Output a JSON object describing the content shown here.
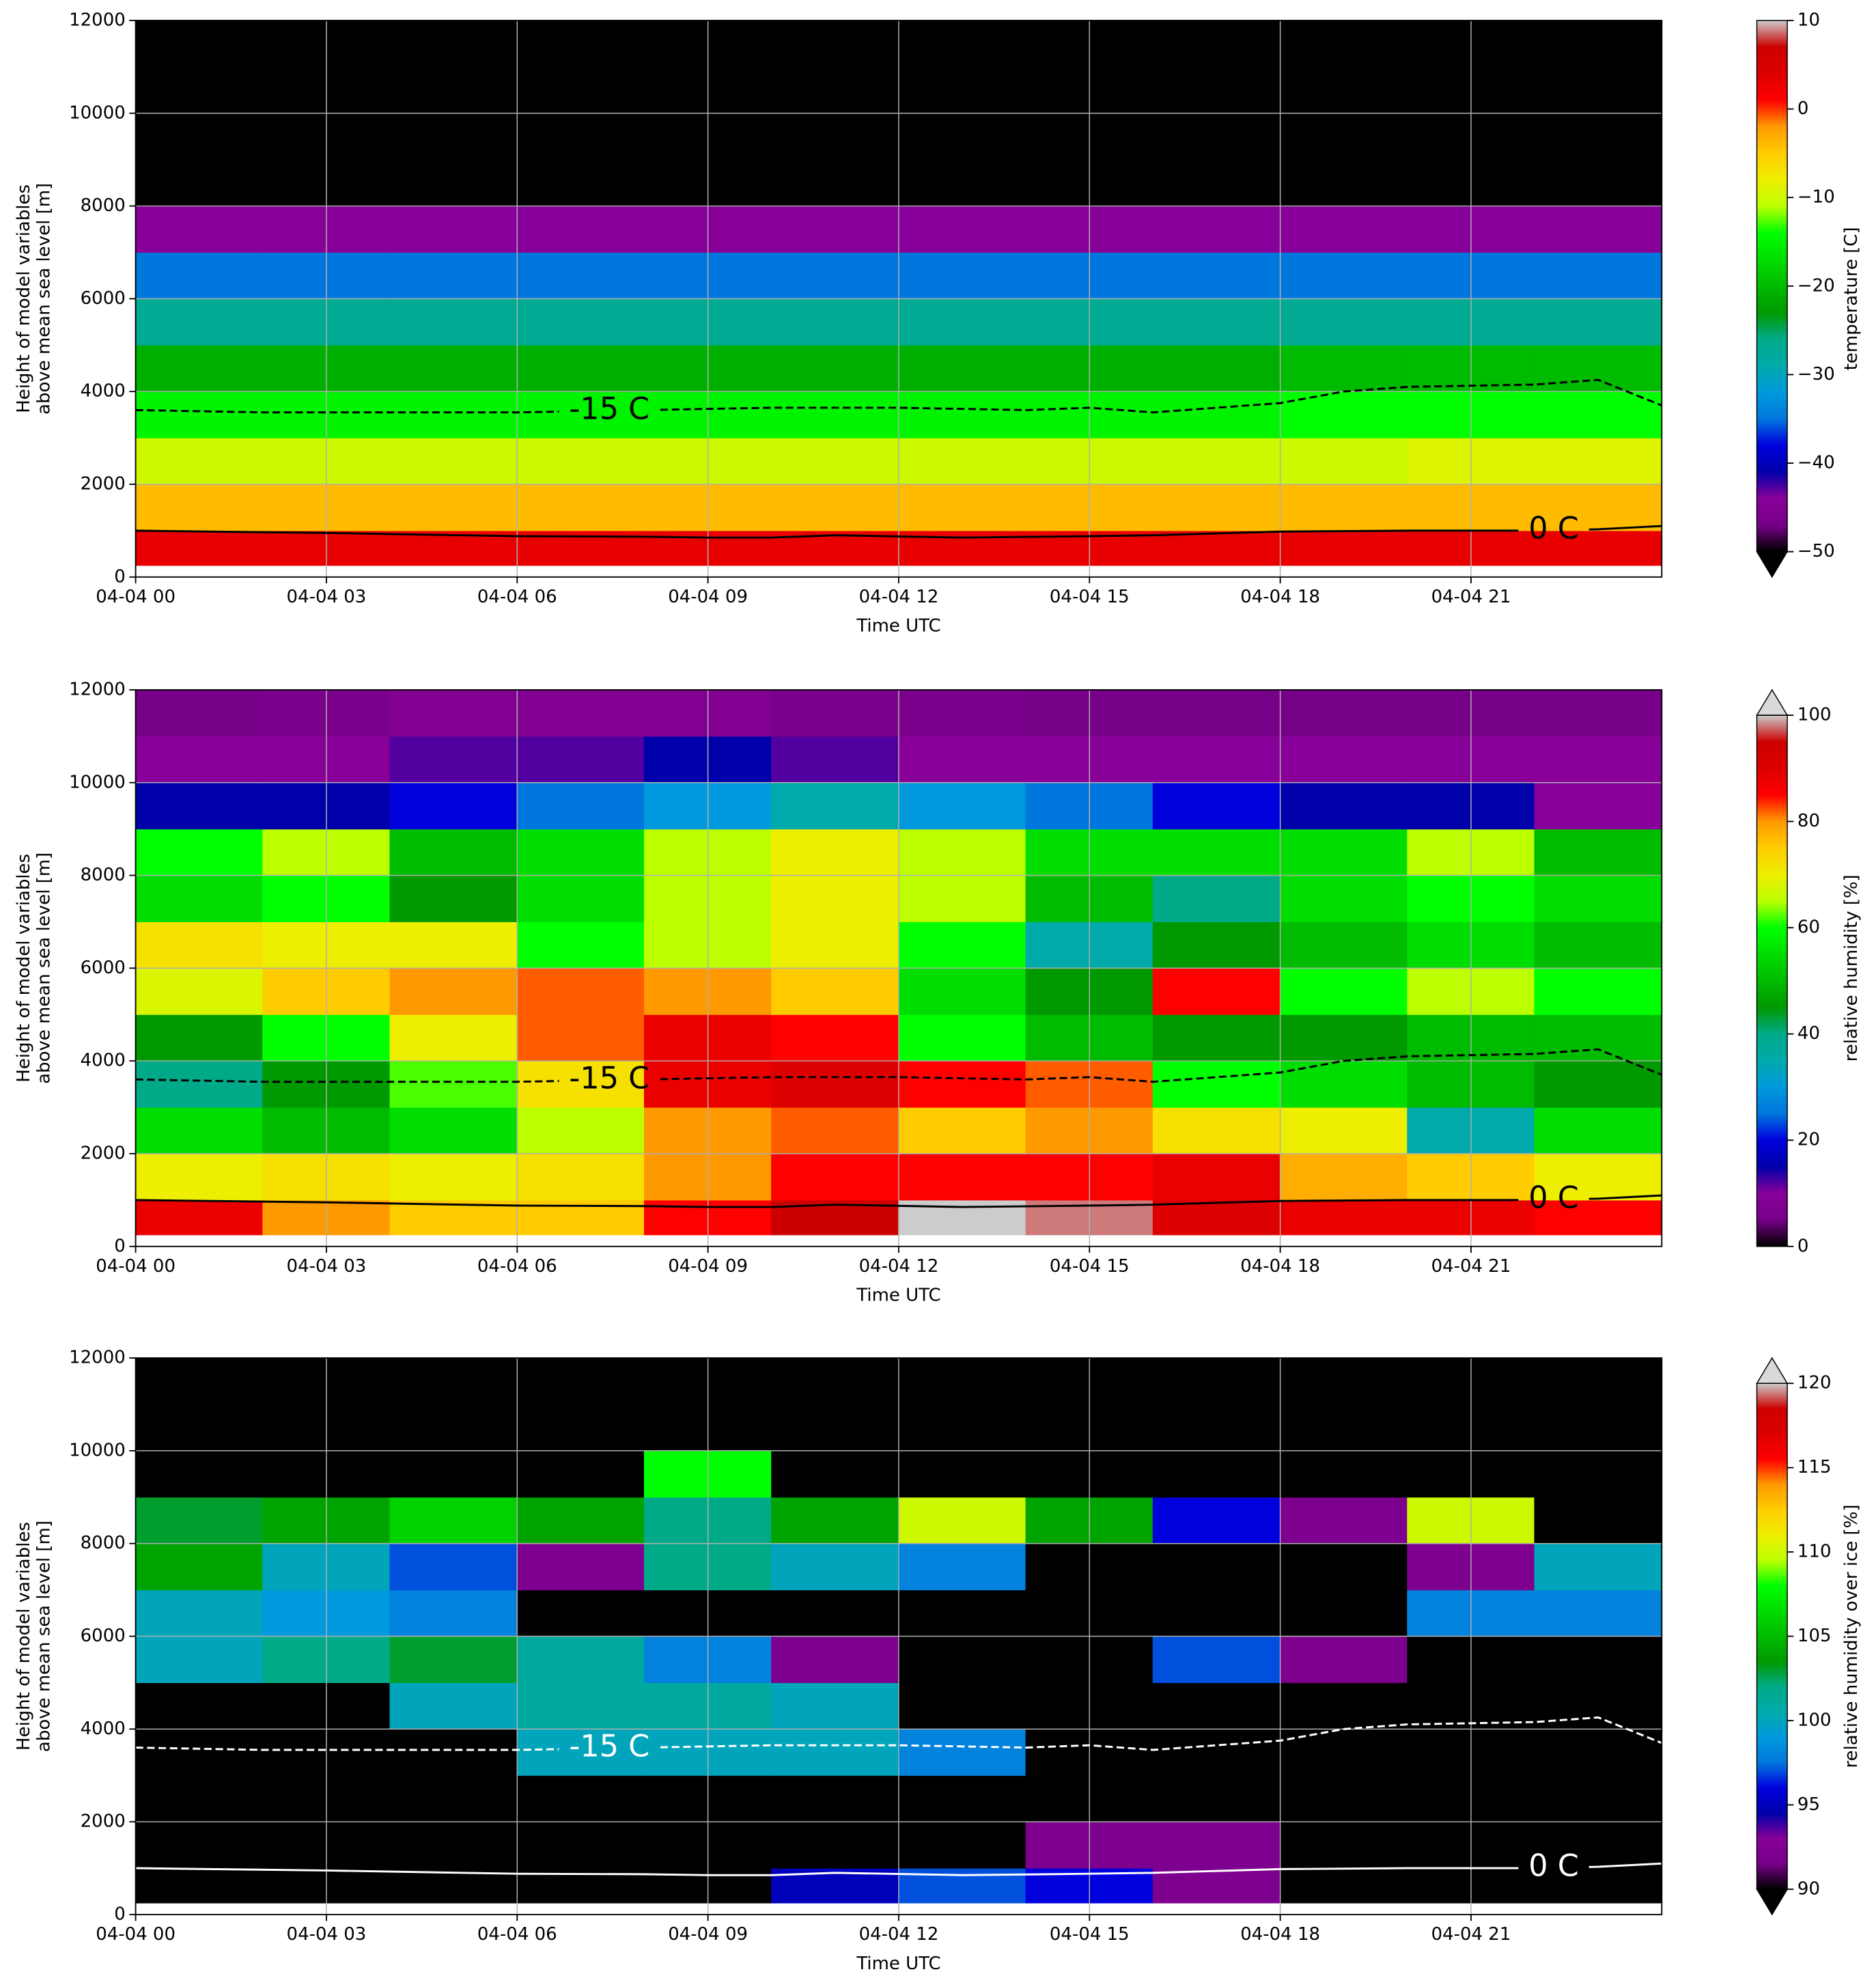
{
  "chart_data": [
    {
      "type": "heatmap",
      "xlabel": "Time UTC",
      "ylabel": [
        "Height of model variables",
        "above mean sea level [m]"
      ],
      "xlim": [
        0,
        24
      ],
      "ylim": [
        0,
        12000
      ],
      "xticks": [
        {
          "value": 0,
          "label": "04-04 00"
        },
        {
          "value": 3,
          "label": "04-04 03"
        },
        {
          "value": 6,
          "label": "04-04 06"
        },
        {
          "value": 9,
          "label": "04-04 09"
        },
        {
          "value": 12,
          "label": "04-04 12"
        },
        {
          "value": 15,
          "label": "04-04 15"
        },
        {
          "value": 18,
          "label": "04-04 18"
        },
        {
          "value": 21,
          "label": "04-04 21"
        }
      ],
      "yticks": [
        0,
        2000,
        4000,
        6000,
        8000,
        10000,
        12000
      ],
      "grid": true,
      "x_edges": [
        0,
        2,
        4,
        6,
        8,
        10,
        12,
        14,
        16,
        18,
        20,
        22,
        24
      ],
      "y_edges": [
        250,
        1000,
        2000,
        3000,
        4000,
        5000,
        6000,
        7000,
        8000,
        9000,
        10000,
        11000,
        12000
      ],
      "z": [
        [
          3,
          3,
          3,
          3,
          3,
          3,
          3,
          3,
          3,
          3,
          3,
          3
        ],
        [
          -4,
          -4,
          -4,
          -4,
          -4,
          -4,
          -4,
          -4,
          -4,
          -4,
          -4,
          -4
        ],
        [
          -10,
          -10,
          -10,
          -10,
          -10,
          -10,
          -10,
          -10,
          -10,
          -10,
          -9,
          -9
        ],
        [
          -15,
          -15,
          -15,
          -15,
          -15,
          -15,
          -15,
          -15,
          -15,
          -14,
          -14,
          -14
        ],
        [
          -21,
          -21,
          -21,
          -21,
          -21,
          -21,
          -21,
          -21,
          -21,
          -20,
          -20,
          -20
        ],
        [
          -27,
          -27,
          -27,
          -27,
          -27,
          -27,
          -27,
          -27,
          -27,
          -27,
          -27,
          -27
        ],
        [
          -35,
          -35,
          -35,
          -35,
          -35,
          -35,
          -35,
          -35,
          -35,
          -35,
          -35,
          -35
        ],
        [
          -44,
          -44,
          -44,
          -44,
          -44,
          -44,
          -44,
          -44,
          -44,
          -44,
          -44,
          -44
        ],
        [
          -52,
          -52,
          -52,
          -52,
          -52,
          -52,
          -52,
          -52,
          -52,
          -52,
          -52,
          -52
        ],
        [
          -60,
          -60,
          -60,
          -60,
          -60,
          -60,
          -60,
          -60,
          -60,
          -60,
          -60,
          -60
        ],
        [
          -60,
          -60,
          -60,
          -60,
          -60,
          -60,
          -60,
          -60,
          -60,
          -60,
          -60,
          -60
        ],
        [
          -60,
          -60,
          -60,
          -60,
          -60,
          -60,
          -60,
          -60,
          -60,
          -60,
          -60,
          -60
        ]
      ],
      "colorbar": {
        "label": "temperature [C]",
        "clim": [
          -50,
          10
        ],
        "extend": "min",
        "under": "#000000",
        "ticks": [
          {
            "value": -50,
            "label": "−50"
          },
          {
            "value": -40,
            "label": "−40"
          },
          {
            "value": -30,
            "label": "−30"
          },
          {
            "value": -20,
            "label": "−20"
          },
          {
            "value": -10,
            "label": "−10"
          },
          0,
          10
        ],
        "colormap": [
          "#000000",
          "#770088",
          "#880099",
          "#0000aa",
          "#0000dd",
          "#0077dd",
          "#0099dd",
          "#00aaaa",
          "#00aa88",
          "#009900",
          "#00bb00",
          "#00dd00",
          "#00ff00",
          "#bbff00",
          "#eeee00",
          "#ffcc00",
          "#ff9900",
          "#ff0000",
          "#dd0000",
          "#cc0000",
          "#cccccc"
        ]
      },
      "contours": [
        {
          "label": "-15 C",
          "style": "dashed",
          "color": "#000000",
          "x": [
            0,
            2,
            4,
            6,
            8,
            10,
            12,
            14,
            15,
            16,
            18,
            19,
            20,
            22,
            23,
            24
          ],
          "y": [
            3600,
            3550,
            3550,
            3550,
            3600,
            3650,
            3650,
            3600,
            3650,
            3550,
            3750,
            4000,
            4100,
            4150,
            4250,
            3700
          ]
        },
        {
          "label": "0 C",
          "style": "solid",
          "color": "#000000",
          "x": [
            0,
            3,
            6,
            8,
            9,
            10,
            11,
            13,
            15,
            16,
            18,
            20,
            22,
            23,
            24
          ],
          "y": [
            1000,
            950,
            880,
            870,
            850,
            850,
            900,
            850,
            880,
            900,
            980,
            1000,
            1000,
            1030,
            1100
          ]
        }
      ]
    },
    {
      "type": "heatmap",
      "xlabel": "Time UTC",
      "ylabel": [
        "Height of model variables",
        "above mean sea level [m]"
      ],
      "xlim": [
        0,
        24
      ],
      "ylim": [
        0,
        12000
      ],
      "xticks": [
        {
          "value": 0,
          "label": "04-04 00"
        },
        {
          "value": 3,
          "label": "04-04 03"
        },
        {
          "value": 6,
          "label": "04-04 06"
        },
        {
          "value": 9,
          "label": "04-04 09"
        },
        {
          "value": 12,
          "label": "04-04 12"
        },
        {
          "value": 15,
          "label": "04-04 15"
        },
        {
          "value": 18,
          "label": "04-04 18"
        },
        {
          "value": 21,
          "label": "04-04 21"
        }
      ],
      "yticks": [
        0,
        2000,
        4000,
        6000,
        8000,
        10000,
        12000
      ],
      "grid": true,
      "x_edges": [
        0,
        2,
        4,
        6,
        8,
        10,
        12,
        14,
        16,
        18,
        20,
        22,
        24
      ],
      "y_edges": [
        250,
        1000,
        2000,
        3000,
        4000,
        5000,
        6000,
        7000,
        8000,
        9000,
        10000,
        11000,
        12000
      ],
      "z": [
        [
          88,
          80,
          75,
          75,
          85,
          95,
          100,
          98,
          90,
          88,
          88,
          85
        ],
        [
          70,
          72,
          70,
          72,
          80,
          85,
          85,
          85,
          88,
          78,
          75,
          70
        ],
        [
          55,
          50,
          55,
          65,
          80,
          82,
          75,
          80,
          72,
          70,
          35,
          55
        ],
        [
          40,
          45,
          62,
          72,
          88,
          90,
          85,
          82,
          60,
          55,
          50,
          45
        ],
        [
          45,
          60,
          70,
          82,
          88,
          85,
          60,
          50,
          45,
          45,
          50,
          50
        ],
        [
          68,
          75,
          80,
          82,
          80,
          75,
          55,
          45,
          85,
          60,
          65,
          60
        ],
        [
          72,
          70,
          70,
          60,
          65,
          70,
          60,
          35,
          45,
          50,
          55,
          50
        ],
        [
          55,
          60,
          45,
          55,
          65,
          70,
          65,
          50,
          40,
          55,
          60,
          55
        ],
        [
          60,
          65,
          50,
          55,
          65,
          70,
          65,
          55,
          55,
          55,
          65,
          50
        ],
        [
          15,
          15,
          20,
          25,
          30,
          35,
          30,
          25,
          20,
          15,
          15,
          10
        ],
        [
          10,
          10,
          12,
          12,
          15,
          12,
          10,
          10,
          10,
          10,
          10,
          10
        ],
        [
          5,
          6,
          8,
          8,
          8,
          6,
          6,
          5,
          5,
          5,
          5,
          5
        ]
      ],
      "colorbar": {
        "label": "relative humidity [%]",
        "clim": [
          0,
          100
        ],
        "extend": "max",
        "over": "#d9d9d9",
        "ticks": [
          0,
          20,
          40,
          60,
          80,
          100
        ],
        "colormap": [
          "#000000",
          "#770088",
          "#880099",
          "#0000aa",
          "#0000dd",
          "#0077dd",
          "#0099dd",
          "#00aaaa",
          "#00aa88",
          "#009900",
          "#00bb00",
          "#00dd00",
          "#00ff00",
          "#bbff00",
          "#eeee00",
          "#ffcc00",
          "#ff9900",
          "#ff0000",
          "#dd0000",
          "#cc0000",
          "#cccccc"
        ]
      },
      "contours": [
        {
          "label": "-15 C",
          "style": "dashed",
          "color": "#000000",
          "x": [
            0,
            2,
            4,
            6,
            8,
            10,
            12,
            14,
            15,
            16,
            18,
            19,
            20,
            22,
            23,
            24
          ],
          "y": [
            3600,
            3550,
            3550,
            3550,
            3600,
            3650,
            3650,
            3600,
            3650,
            3550,
            3750,
            4000,
            4100,
            4150,
            4250,
            3700
          ]
        },
        {
          "label": "0 C",
          "style": "solid",
          "color": "#000000",
          "x": [
            0,
            3,
            6,
            8,
            9,
            10,
            11,
            13,
            15,
            16,
            18,
            20,
            22,
            23,
            24
          ],
          "y": [
            1000,
            950,
            880,
            870,
            850,
            850,
            900,
            850,
            880,
            900,
            980,
            1000,
            1000,
            1030,
            1100
          ]
        }
      ]
    },
    {
      "type": "heatmap",
      "xlabel": "Time UTC",
      "ylabel": [
        "Height of model variables",
        "above mean sea level [m]"
      ],
      "xlim": [
        0,
        24
      ],
      "ylim": [
        0,
        12000
      ],
      "xticks": [
        {
          "value": 0,
          "label": "04-04 00"
        },
        {
          "value": 3,
          "label": "04-04 03"
        },
        {
          "value": 6,
          "label": "04-04 06"
        },
        {
          "value": 9,
          "label": "04-04 09"
        },
        {
          "value": 12,
          "label": "04-04 12"
        },
        {
          "value": 15,
          "label": "04-04 15"
        },
        {
          "value": 18,
          "label": "04-04 18"
        },
        {
          "value": 21,
          "label": "04-04 21"
        }
      ],
      "yticks": [
        0,
        2000,
        4000,
        6000,
        8000,
        10000,
        12000
      ],
      "grid": true,
      "x_edges": [
        0,
        2,
        4,
        6,
        8,
        10,
        12,
        14,
        16,
        18,
        20,
        22,
        24
      ],
      "y_edges": [
        250,
        1000,
        2000,
        3000,
        4000,
        5000,
        6000,
        7000,
        8000,
        9000,
        10000,
        11000,
        12000
      ],
      "z": [
        [
          85,
          85,
          85,
          85,
          85,
          95,
          97,
          96,
          92,
          85,
          85,
          85
        ],
        [
          85,
          85,
          85,
          85,
          85,
          85,
          85,
          92,
          92,
          85,
          85,
          85
        ],
        [
          85,
          85,
          85,
          85,
          85,
          85,
          85,
          85,
          85,
          85,
          85,
          85
        ],
        [
          85,
          85,
          85,
          100,
          100,
          100,
          98,
          85,
          85,
          85,
          85,
          85
        ],
        [
          85,
          85,
          100,
          101,
          101,
          100,
          85,
          85,
          85,
          85,
          85,
          85
        ],
        [
          100,
          102,
          103,
          101,
          98,
          92,
          85,
          85,
          97,
          92,
          85,
          85
        ],
        [
          100,
          99,
          98,
          85,
          85,
          85,
          85,
          85,
          85,
          85,
          98,
          98
        ],
        [
          104,
          100,
          97,
          92,
          102,
          100,
          98,
          85,
          85,
          85,
          92,
          100
        ],
        [
          103,
          104,
          106,
          104,
          102,
          104,
          110,
          104,
          96,
          92,
          110,
          85
        ],
        [
          85,
          85,
          85,
          85,
          108,
          85,
          85,
          85,
          85,
          85,
          85,
          85
        ],
        [
          85,
          85,
          85,
          85,
          85,
          85,
          85,
          85,
          85,
          85,
          85,
          85
        ],
        [
          85,
          85,
          85,
          85,
          85,
          85,
          85,
          85,
          85,
          85,
          85,
          85
        ]
      ],
      "colorbar": {
        "label": "relative humidity over ice [%]",
        "clim": [
          90,
          120
        ],
        "extend": "both",
        "under": "#000000",
        "over": "#d9d9d9",
        "ticks": [
          90,
          95,
          100,
          105,
          110,
          115,
          120
        ],
        "colormap": [
          "#000000",
          "#770088",
          "#880099",
          "#0000aa",
          "#0000dd",
          "#0077dd",
          "#0099dd",
          "#00aaaa",
          "#00aa88",
          "#009900",
          "#00bb00",
          "#00dd00",
          "#00ff00",
          "#bbff00",
          "#eeee00",
          "#ffcc00",
          "#ff9900",
          "#ff0000",
          "#dd0000",
          "#cc0000",
          "#cccccc"
        ]
      },
      "contours": [
        {
          "label": "-15 C",
          "style": "dashed",
          "color": "#ffffff",
          "x": [
            0,
            2,
            4,
            6,
            8,
            10,
            12,
            14,
            15,
            16,
            18,
            19,
            20,
            22,
            23,
            24
          ],
          "y": [
            3600,
            3550,
            3550,
            3550,
            3600,
            3650,
            3650,
            3600,
            3650,
            3550,
            3750,
            4000,
            4100,
            4150,
            4250,
            3700
          ]
        },
        {
          "label": "0 C",
          "style": "solid",
          "color": "#ffffff",
          "x": [
            0,
            3,
            6,
            8,
            9,
            10,
            11,
            13,
            15,
            16,
            18,
            20,
            22,
            23,
            24
          ],
          "y": [
            1000,
            950,
            880,
            870,
            850,
            850,
            900,
            850,
            880,
            900,
            980,
            1000,
            1000,
            1030,
            1100
          ]
        }
      ]
    }
  ]
}
